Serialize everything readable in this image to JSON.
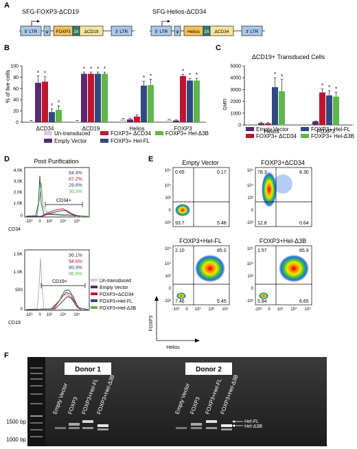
{
  "panels": {
    "A": "A",
    "B": "B",
    "C": "C",
    "D": "D",
    "E": "E",
    "F": "F"
  },
  "panelA": {
    "construct1": {
      "title": "SFG-FOXP3-ΔCD19",
      "boxes": [
        "5' LTR",
        "ψ",
        "FOXP3",
        "2A",
        "ΔCD19",
        "3' LTR"
      ]
    },
    "construct2": {
      "title": "SFG-Helios-ΔCD34",
      "boxes": [
        "5' LTR",
        "ψ",
        "Helios",
        "2A",
        "ΔCD34",
        "3' LTR"
      ]
    },
    "colors": {
      "ltr": "#a9c7e8",
      "foxp3": "#f2c15a",
      "twoA": "#2f7f6f",
      "cd": "#f6e49a"
    }
  },
  "chart_data": [
    {
      "id": "B",
      "type": "bar",
      "title": "",
      "ylabel": "% of live cells",
      "ylim": [
        0,
        100
      ],
      "yticks": [
        0,
        20,
        40,
        60,
        80,
        100
      ],
      "categories": [
        "ΔCD34",
        "ΔCD19",
        "Helios",
        "FOXP3"
      ],
      "series": [
        {
          "name": "Un-transduced",
          "color": "#d8c9dc",
          "values": [
            2,
            2,
            5,
            4
          ],
          "errors": [
            1,
            1,
            2,
            1
          ],
          "stars": [
            false,
            false,
            false,
            false
          ]
        },
        {
          "name": "Empty Vector",
          "color": "#5b2a6e",
          "values": [
            70,
            86,
            5,
            3
          ],
          "errors": [
            12,
            3,
            2,
            1
          ],
          "stars": [
            true,
            true,
            false,
            false
          ]
        },
        {
          "name": "FOXP3+ ΔCD34",
          "color": "#c0152e",
          "values": [
            72,
            86,
            10,
            82
          ],
          "errors": [
            9,
            3,
            3,
            3
          ],
          "stars": [
            true,
            true,
            false,
            true
          ]
        },
        {
          "name": "FOXP3+ Hel-FL",
          "color": "#30497f",
          "values": [
            18,
            86,
            65,
            74
          ],
          "errors": [
            6,
            3,
            8,
            4
          ],
          "stars": [
            true,
            true,
            true,
            true
          ]
        },
        {
          "name": "FOXP3+ Hel-Δ3B",
          "color": "#5fb64a",
          "values": [
            22,
            86,
            66,
            74
          ],
          "errors": [
            7,
            3,
            10,
            4
          ],
          "stars": [
            true,
            true,
            true,
            true
          ]
        }
      ]
    },
    {
      "id": "C",
      "type": "bar",
      "title": "ΔCD19+ Transduced Cells",
      "ylabel": "GMFI",
      "ylim": [
        0,
        5000
      ],
      "yticks": [
        0,
        1000,
        2000,
        3000,
        4000,
        5000
      ],
      "categories": [
        "Helios",
        "FOXP3"
      ],
      "series": [
        {
          "name": "Empty Vector",
          "color": "#5b2a6e",
          "values": [
            150,
            300
          ],
          "errors": [
            80,
            40
          ],
          "stars": [
            false,
            false
          ]
        },
        {
          "name": "FOXP3+ ΔCD34",
          "color": "#c0152e",
          "values": [
            140,
            2750
          ],
          "errors": [
            60,
            300
          ],
          "stars": [
            false,
            true
          ]
        },
        {
          "name": "FOXP3+ Hel-FL",
          "color": "#30497f",
          "values": [
            3200,
            2500
          ],
          "errors": [
            800,
            400
          ],
          "stars": [
            true,
            true
          ]
        },
        {
          "name": "FOXP3+ Hel-Δ3B",
          "color": "#5fb64a",
          "values": [
            2850,
            2400
          ],
          "errors": [
            1000,
            350
          ],
          "stars": [
            true,
            true
          ]
        }
      ]
    }
  ],
  "panelB": {
    "star": "*",
    "legend": [
      "Un-transduced",
      "FOXP3+ ΔCD34",
      "FOXP3+ Hel-Δ3B",
      "Empty Vector",
      "FOXP3+ Hel-FL"
    ]
  },
  "panelC": {
    "legend": [
      "Empty Vector",
      "FOXP3+ Hel-FL",
      "FOXP3+ ΔCD34",
      "FOXP3+ Hel-Δ3B"
    ]
  },
  "panelD": {
    "title": "Post Purification",
    "yticks": [
      "4.0K",
      "3.0K",
      "2.0K",
      "1.0K",
      "0"
    ],
    "yticks2": [
      "1.5K",
      "1.0K",
      "500",
      "0"
    ],
    "xticks": [
      "-10³",
      "0",
      "10³",
      "10⁴",
      "10⁵"
    ],
    "top": {
      "xlabel": "CD34",
      "gate": "CD34+",
      "percents": [
        {
          "text": "84.4%",
          "color": "#5b2a6e"
        },
        {
          "text": "87.2%",
          "color": "#c0152e"
        },
        {
          "text": "29.8%",
          "color": "#30497f"
        },
        {
          "text": "36.3%",
          "color": "#5fb64a"
        }
      ]
    },
    "bottom": {
      "xlabel": "CD19",
      "gate": "CD19+",
      "percents": [
        {
          "text": "96.1%",
          "color": "#5b2a6e"
        },
        {
          "text": "94.6%",
          "color": "#c0152e"
        },
        {
          "text": "95.9%",
          "color": "#30497f"
        },
        {
          "text": "96.9%",
          "color": "#5fb64a"
        }
      ]
    },
    "legend": [
      {
        "label": "Un-transduced",
        "color": "#d8c9dc"
      },
      {
        "label": "Empty Vector",
        "color": "#5b2a6e"
      },
      {
        "label": "FOXP3+ΔCD34",
        "color": "#c0152e"
      },
      {
        "label": "FOXP3+Hel-FL",
        "color": "#30497f"
      },
      {
        "label": "FOXP3+Hel-Δ3B",
        "color": "#5fb64a"
      }
    ]
  },
  "panelE": {
    "ylabel": "FOXP3",
    "xlabel": "Helios",
    "ticks": [
      "10⁵",
      "10⁴",
      "10³",
      "0",
      "-10³"
    ],
    "xticks": [
      "-10³",
      "0",
      "10³",
      "10⁴",
      "10⁵"
    ],
    "plots": [
      {
        "title": "Empty Vector",
        "q": [
          "0.65",
          "0.17",
          "93.7",
          "5.48"
        ]
      },
      {
        "title": "FOXP3+ΔCD34",
        "q": [
          "78.3",
          "8.30",
          "12.8",
          "0.64"
        ]
      },
      {
        "title": "FOXP3+Hel-FL",
        "q": [
          "2.10",
          "85.0",
          "7.46",
          "5.45"
        ]
      },
      {
        "title": "FOXP3+Hel-Δ3B",
        "q": [
          "1.57",
          "85.9",
          "5.84",
          "6.65"
        ]
      }
    ]
  },
  "panelF": {
    "donor1": "Donor 1",
    "donor2": "Donor 2",
    "lanes1": [
      "Empty Vector",
      "FOXP3",
      "FOXP3+Hel-FL",
      "FOXP3+Hel-Δ3B"
    ],
    "lanes2": [
      "Empty Vector",
      "FOXP3",
      "FOXP3+Hel-FL",
      "FOXP3+Hel-Δ3B"
    ],
    "ladder": [
      "1500 bp",
      "1000 bp"
    ],
    "bands": [
      "Hel-FL",
      "Hel-Δ3B"
    ]
  }
}
